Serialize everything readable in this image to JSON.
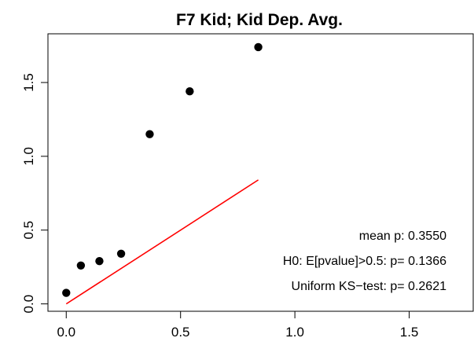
{
  "chart_data": {
    "type": "scatter",
    "title": "F7 Kid;   Kid Dep. Avg.",
    "xlabel": "",
    "ylabel": "",
    "xlim": [
      -0.08,
      1.78
    ],
    "ylim": [
      -0.05,
      1.83
    ],
    "xticks": [
      0.0,
      0.5,
      1.0,
      1.5
    ],
    "xtick_labels": [
      "0.0",
      "0.5",
      "1.0",
      "1.5"
    ],
    "yticks": [
      0.0,
      0.5,
      1.0,
      1.5
    ],
    "ytick_labels": [
      "0.0",
      "0.5",
      "1.0",
      "1.5"
    ],
    "grid": false,
    "points": [
      {
        "x": 0.0,
        "y": 0.075
      },
      {
        "x": 0.064,
        "y": 0.26
      },
      {
        "x": 0.145,
        "y": 0.29
      },
      {
        "x": 0.24,
        "y": 0.34
      },
      {
        "x": 0.365,
        "y": 1.15
      },
      {
        "x": 0.54,
        "y": 1.44
      },
      {
        "x": 0.84,
        "y": 1.74
      }
    ],
    "point_color": "#000000",
    "reference_line": {
      "x": [
        0.0,
        0.84
      ],
      "y": [
        0.0,
        0.84
      ],
      "color": "#ff0000"
    },
    "annotations": [
      "mean p:  0.3550",
      "H0: E[pvalue]>0.5: p= 0.1366",
      "Uniform KS−test: p= 0.2621"
    ]
  }
}
